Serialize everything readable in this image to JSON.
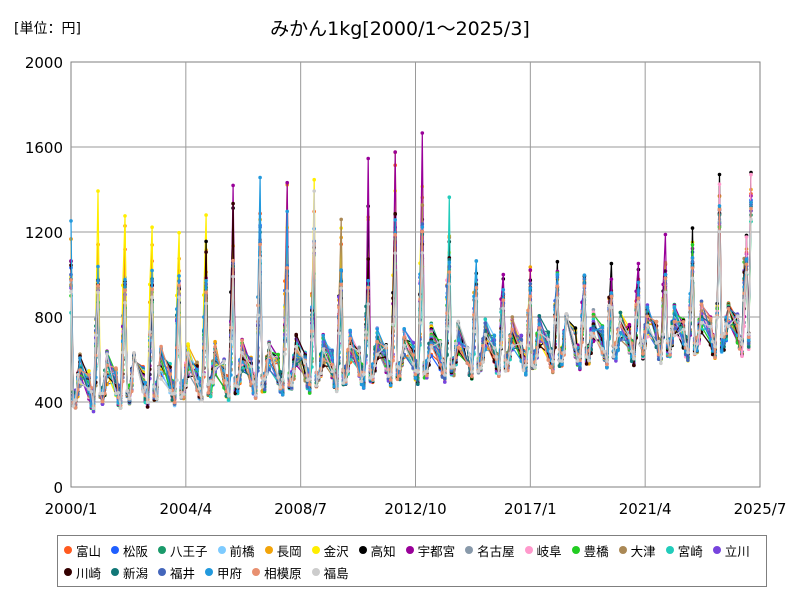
{
  "unit_label": "[単位：円]",
  "chart_data": {
    "type": "line",
    "title": "みかん1kg[2000/1～2025/3]",
    "xlabel": "",
    "ylabel": "",
    "ylim": [
      0,
      2000
    ],
    "yticks": [
      0,
      400,
      800,
      1200,
      1600,
      2000
    ],
    "xlim": [
      "2000/1",
      "2025/7"
    ],
    "xticks": [
      "2000/1",
      "2004/4",
      "2008/7",
      "2012/10",
      "2017/1",
      "2021/4",
      "2025/7"
    ],
    "grid": true,
    "legend_position": "bottom",
    "series": [
      {
        "name": "富山",
        "color": "#ff5a1f",
        "peaks": [
          1190,
          1200,
          1120,
          1080,
          1060,
          1050,
          1080,
          1300,
          1150,
          1330,
          1150,
          1060,
          1560,
          1350,
          1200,
          950,
          920,
          1020,
          950,
          1000,
          960,
          980,
          1080,
          1100,
          1380
        ]
      },
      {
        "name": "松阪",
        "color": "#1f5fff",
        "peaks": [
          1050,
          1000,
          990,
          1000,
          980,
          950,
          1080,
          1240,
          1050,
          1200,
          1040,
          950,
          1280,
          1250,
          1100,
          960,
          900,
          960,
          1000,
          980,
          900,
          960,
          1050,
          1150,
          1350
        ]
      },
      {
        "name": "八王子",
        "color": "#1a9a6a",
        "peaks": [
          960,
          900,
          880,
          940,
          920,
          890,
          1000,
          1110,
          980,
          1100,
          960,
          900,
          1150,
          1100,
          980,
          900,
          850,
          900,
          900,
          920,
          860,
          900,
          960,
          1000,
          1280
        ]
      },
      {
        "name": "前橋",
        "color": "#7ecbff",
        "peaks": [
          980,
          940,
          900,
          960,
          930,
          900,
          1020,
          1150,
          1000,
          1150,
          980,
          930,
          1200,
          1150,
          1000,
          900,
          860,
          920,
          930,
          940,
          880,
          920,
          980,
          1050,
          1300
        ]
      },
      {
        "name": "長岡",
        "color": "#f2a40a",
        "peaks": [
          1180,
          1180,
          1240,
          1180,
          1100,
          1120,
          1170,
          1320,
          1470,
          1200,
          1210,
          1280,
          1650,
          1400,
          1200,
          950,
          930,
          1050,
          1000,
          1000,
          950,
          980,
          1050,
          1120,
          1400
        ]
      },
      {
        "name": "金沢",
        "color": "#ffee00",
        "peaks": [
          1000,
          1400,
          1290,
          1240,
          1220,
          1290,
          1180,
          1200,
          1250,
          1460,
          1280,
          1310,
          1410,
          1420,
          1120,
          960,
          900,
          960,
          930,
          950,
          900,
          950,
          1080,
          1200,
          1300
        ]
      },
      {
        "name": "高知",
        "color": "#000000",
        "peaks": [
          1070,
          1000,
          980,
          920,
          880,
          1170,
          1370,
          1000,
          1030,
          1130,
          850,
          1350,
          1320,
          1300,
          1170,
          1020,
          1000,
          1020,
          1100,
          1030,
          1080,
          1040,
          1060,
          1270,
          1480
        ]
      },
      {
        "name": "宇都宮",
        "color": "#990099",
        "peaks": [
          1070,
          1000,
          970,
          970,
          950,
          1000,
          1490,
          1050,
          1440,
          850,
          880,
          1550,
          1650,
          1680,
          1000,
          1000,
          1020,
          1060,
          1060,
          1000,
          1020,
          1100,
          1200,
          1170,
          1370
        ]
      },
      {
        "name": "名古屋",
        "color": "#8899aa",
        "peaks": [
          980,
          960,
          940,
          960,
          940,
          920,
          1040,
          1180,
          1020,
          1150,
          980,
          930,
          1180,
          1200,
          1050,
          940,
          880,
          920,
          950,
          960,
          880,
          920,
          1000,
          1080,
          1300
        ]
      },
      {
        "name": "岐阜",
        "color": "#ff99cc",
        "peaks": [
          1000,
          980,
          960,
          980,
          960,
          930,
          1060,
          1200,
          1040,
          1180,
          990,
          950,
          1220,
          1230,
          1060,
          940,
          890,
          930,
          960,
          960,
          900,
          930,
          1000,
          1120,
          1470
        ]
      },
      {
        "name": "豊橋",
        "color": "#22cc22",
        "peaks": [
          900,
          880,
          860,
          880,
          860,
          840,
          950,
          1080,
          920,
          1050,
          900,
          860,
          1100,
          1080,
          960,
          880,
          830,
          860,
          1020,
          900,
          830,
          870,
          940,
          1190,
          1250
        ]
      },
      {
        "name": "大津",
        "color": "#aa8855",
        "peaks": [
          1000,
          970,
          950,
          970,
          950,
          920,
          1060,
          1190,
          1030,
          1170,
          1270,
          940,
          1210,
          1350,
          1030,
          930,
          880,
          920,
          950,
          950,
          890,
          920,
          990,
          1080,
          1330
        ]
      },
      {
        "name": "宮崎",
        "color": "#22ccbb",
        "peaks": [
          860,
          840,
          820,
          840,
          830,
          800,
          900,
          1020,
          880,
          1000,
          860,
          820,
          1050,
          1040,
          1370,
          1100,
          880,
          900,
          880,
          880,
          840,
          860,
          920,
          1000,
          1250
        ]
      },
      {
        "name": "立川",
        "color": "#7744dd",
        "peaks": [
          980,
          950,
          930,
          950,
          930,
          900,
          1040,
          1170,
          1010,
          1150,
          970,
          920,
          1190,
          1180,
          1040,
          930,
          880,
          910,
          940,
          940,
          880,
          910,
          980,
          1060,
          1300
        ]
      },
      {
        "name": "川崎",
        "color": "#330000",
        "peaks": [
          1090,
          1000,
          980,
          980,
          960,
          1160,
          1380,
          1100,
          1040,
          1140,
          900,
          1100,
          1300,
          1200,
          1080,
          960,
          920,
          960,
          980,
          1000,
          940,
          970,
          1030,
          1100,
          1340
        ]
      },
      {
        "name": "新潟",
        "color": "#117777",
        "peaks": [
          1020,
          990,
          970,
          990,
          970,
          940,
          1080,
          1210,
          1050,
          1190,
          1000,
          950,
          1230,
          1220,
          1070,
          950,
          900,
          940,
          970,
          970,
          910,
          940,
          1010,
          1090,
          1320
        ]
      },
      {
        "name": "福井",
        "color": "#4466bb",
        "peaks": [
          1040,
          1010,
          990,
          1010,
          990,
          960,
          1100,
          1230,
          1070,
          1210,
          1020,
          970,
          1250,
          1240,
          1090,
          970,
          920,
          960,
          990,
          990,
          930,
          960,
          1030,
          1110,
          1330
        ]
      },
      {
        "name": "甲府",
        "color": "#2299dd",
        "peaks": [
          1300,
          1050,
          1010,
          1040,
          1010,
          980,
          1120,
          1460,
          1320,
          1230,
          1040,
          990,
          1270,
          1260,
          1110,
          1110,
          940,
          980,
          1010,
          1010,
          950,
          980,
          1050,
          1130,
          1340
        ]
      },
      {
        "name": "相模原",
        "color": "#e89070",
        "peaks": [
          1010,
          980,
          960,
          980,
          960,
          930,
          1070,
          1200,
          1040,
          1180,
          990,
          940,
          1220,
          1210,
          1060,
          940,
          890,
          930,
          960,
          960,
          900,
          930,
          1000,
          1080,
          1310
        ]
      },
      {
        "name": "福島",
        "color": "#cccccc",
        "peaks": [
          950,
          920,
          900,
          920,
          900,
          880,
          1000,
          1130,
          970,
          1460,
          940,
          890,
          1150,
          1140,
          1000,
          900,
          850,
          890,
          910,
          910,
          860,
          890,
          950,
          1030,
          1260
        ]
      }
    ]
  }
}
